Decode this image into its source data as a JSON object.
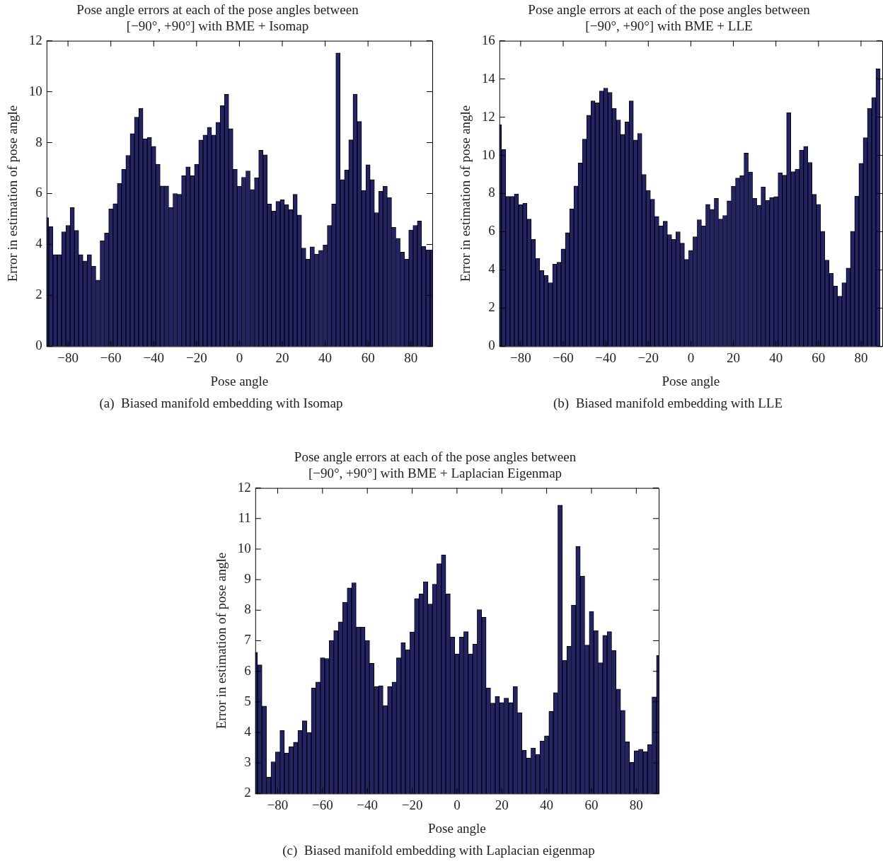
{
  "chart_data": [
    {
      "type": "bar",
      "title": "Pose angle errors at each of the pose angles between\n[−90°, +90°] with BME + Isomap",
      "xlabel": "Pose angle",
      "ylabel": "Error in estimation of pose angle",
      "annotations": [
        "(a)  Biased manifold embedding with Isomap"
      ],
      "color": "#232366",
      "x": [
        -90,
        -88,
        -86,
        -84,
        -82,
        -80,
        -78,
        -76,
        -74,
        -72,
        -70,
        -68,
        -66,
        -64,
        -62,
        -60,
        -58,
        -56,
        -54,
        -52,
        -50,
        -48,
        -46,
        -44,
        -42,
        -40,
        -38,
        -36,
        -34,
        -32,
        -30,
        -28,
        -26,
        -24,
        -22,
        -20,
        -18,
        -16,
        -14,
        -12,
        -10,
        -8,
        -6,
        -4,
        -2,
        0,
        2,
        4,
        6,
        8,
        10,
        12,
        14,
        16,
        18,
        20,
        22,
        24,
        26,
        28,
        30,
        32,
        34,
        36,
        38,
        40,
        42,
        44,
        46,
        48,
        50,
        52,
        54,
        56,
        58,
        60,
        62,
        64,
        66,
        68,
        70,
        72,
        74,
        76,
        78,
        80,
        82,
        84,
        86,
        88,
        90
      ],
      "values": [
        5.05,
        4.7,
        3.6,
        3.6,
        4.5,
        4.75,
        5.45,
        4.55,
        3.6,
        3.35,
        3.6,
        3.15,
        2.6,
        4.15,
        4.45,
        5.4,
        5.6,
        6.4,
        6.95,
        7.5,
        8.35,
        9.0,
        9.35,
        8.15,
        8.2,
        7.85,
        7.15,
        6.3,
        6.3,
        5.45,
        6.0,
        5.97,
        6.7,
        7.05,
        6.7,
        7.15,
        8.1,
        8.3,
        8.6,
        8.3,
        8.8,
        9.45,
        9.9,
        8.55,
        6.95,
        6.29,
        6.64,
        6.89,
        6.16,
        6.62,
        7.7,
        7.52,
        5.59,
        5.31,
        5.69,
        5.76,
        5.57,
        5.37,
        5.97,
        5.16,
        3.86,
        3.43,
        3.91,
        3.62,
        3.77,
        3.98,
        4.75,
        5.59,
        11.52,
        6.55,
        6.93,
        8.11,
        9.9,
        8.83,
        6.12,
        7.13,
        6.55,
        5.25,
        6.09,
        6.29,
        5.84,
        4.67,
        4.24,
        3.7,
        3.43,
        4.57,
        4.75,
        4.92,
        3.92,
        3.79,
        3.79
      ],
      "xlim": [
        -90,
        90
      ],
      "xticks": [
        {
          "value": -80,
          "label": "−80"
        },
        {
          "value": -60,
          "label": "−60"
        },
        {
          "value": -40,
          "label": "−40"
        },
        {
          "value": -20,
          "label": "−20"
        },
        0,
        20,
        40,
        60,
        80
      ],
      "ylim": [
        0,
        12
      ],
      "yticks": [
        0,
        2,
        4,
        6,
        8,
        10,
        12
      ]
    },
    {
      "type": "bar",
      "title": "Pose angle errors at each of the pose angles between\n[−90°, +90°] with BME + LLE",
      "xlabel": "Pose angle",
      "ylabel": "Error in estimation of pose angle",
      "annotations": [
        "(b)  Biased manifold embedding with LLE"
      ],
      "color": "#232366",
      "x": [
        -90,
        -88,
        -86,
        -84,
        -82,
        -80,
        -78,
        -76,
        -74,
        -72,
        -70,
        -68,
        -66,
        -64,
        -62,
        -60,
        -58,
        -56,
        -54,
        -52,
        -50,
        -48,
        -46,
        -44,
        -42,
        -40,
        -38,
        -36,
        -34,
        -32,
        -30,
        -28,
        -26,
        -24,
        -22,
        -20,
        -18,
        -16,
        -14,
        -12,
        -10,
        -8,
        -6,
        -4,
        -2,
        0,
        2,
        4,
        6,
        8,
        10,
        12,
        14,
        16,
        18,
        20,
        22,
        24,
        26,
        28,
        30,
        32,
        34,
        36,
        38,
        40,
        42,
        44,
        46,
        48,
        50,
        52,
        54,
        56,
        58,
        60,
        62,
        64,
        66,
        68,
        70,
        72,
        74,
        76,
        78,
        80,
        82,
        84,
        86,
        88
      ],
      "values": [
        11.6,
        10.3,
        7.85,
        7.85,
        7.98,
        7.42,
        7.5,
        6.66,
        5.6,
        4.6,
        3.97,
        3.71,
        3.33,
        4.3,
        4.4,
        5.1,
        5.95,
        7.2,
        8.4,
        9.6,
        10.85,
        12.1,
        12.85,
        12.75,
        13.37,
        13.52,
        13.3,
        12.45,
        11.85,
        11.1,
        11.75,
        12.85,
        10.8,
        11.15,
        9.0,
        8.15,
        7.7,
        6.8,
        6.3,
        6.55,
        5.85,
        5.6,
        6.0,
        5.4,
        4.55,
        5.02,
        5.74,
        6.63,
        6.3,
        7.43,
        7.17,
        7.75,
        6.66,
        6.85,
        7.62,
        8.39,
        8.81,
        8.94,
        10.12,
        9.13,
        7.75,
        7.39,
        8.35,
        7.64,
        7.78,
        7.84,
        9.09,
        8.96,
        12.23,
        9.15,
        9.28,
        10.27,
        10.47,
        9.63,
        7.96,
        7.43,
        6.02,
        4.51,
        3.82,
        3.16,
        2.62,
        3.33,
        4.1,
        6.02,
        7.87,
        9.58,
        10.92,
        12.46,
        13.03,
        14.53
      ],
      "xlim": [
        -90,
        90
      ],
      "xticks": [
        {
          "value": -80,
          "label": "−80"
        },
        {
          "value": -60,
          "label": "−60"
        },
        {
          "value": -40,
          "label": "−40"
        },
        {
          "value": -20,
          "label": "−20"
        },
        0,
        20,
        40,
        60,
        80
      ],
      "ylim": [
        0,
        16
      ],
      "yticks": [
        0,
        2,
        4,
        6,
        8,
        10,
        12,
        14,
        16
      ]
    },
    {
      "type": "bar",
      "title": "Pose angle errors at each of the pose angles between\n[−90°, +90°] with BME + Laplacian Eigenmap",
      "xlabel": "Pose angle",
      "ylabel": "Error in estimation of pose angle",
      "annotations": [
        "(c)  Biased manifold embedding with Laplacian eigenmap"
      ],
      "color": "#232366",
      "x": [
        -90,
        -88,
        -86,
        -84,
        -82,
        -80,
        -78,
        -76,
        -74,
        -72,
        -70,
        -68,
        -66,
        -64,
        -62,
        -60,
        -58,
        -56,
        -54,
        -52,
        -50,
        -48,
        -46,
        -44,
        -42,
        -40,
        -38,
        -36,
        -34,
        -32,
        -30,
        -28,
        -26,
        -24,
        -22,
        -20,
        -18,
        -16,
        -14,
        -12,
        -10,
        -8,
        -6,
        -4,
        -2,
        0,
        2,
        4,
        6,
        8,
        10,
        12,
        14,
        16,
        18,
        20,
        22,
        24,
        26,
        28,
        30,
        32,
        34,
        36,
        38,
        40,
        42,
        44,
        46,
        48,
        50,
        52,
        54,
        56,
        58,
        60,
        62,
        64,
        66,
        68,
        70,
        72,
        74,
        76,
        78,
        80,
        82,
        84,
        86,
        88,
        90
      ],
      "values": [
        6.62,
        6.21,
        4.86,
        2.54,
        3.04,
        3.36,
        4.06,
        3.33,
        3.53,
        3.68,
        4.06,
        4.38,
        4.0,
        5.45,
        5.65,
        6.44,
        6.42,
        7.01,
        7.33,
        7.62,
        8.26,
        8.73,
        8.9,
        7.45,
        7.45,
        7.01,
        6.26,
        5.5,
        5.53,
        4.88,
        5.5,
        5.65,
        6.44,
        6.94,
        6.7,
        7.29,
        8.38,
        8.53,
        8.93,
        8.2,
        8.85,
        9.52,
        9.81,
        8.53,
        7.12,
        6.57,
        7.12,
        7.3,
        6.57,
        6.89,
        8.02,
        7.77,
        5.45,
        4.96,
        5.18,
        4.98,
        5.12,
        4.98,
        5.5,
        4.65,
        3.42,
        3.16,
        3.49,
        3.28,
        3.72,
        3.89,
        4.69,
        5.3,
        11.44,
        6.36,
        6.82,
        8.16,
        10.09,
        9.12,
        6.86,
        7.96,
        7.33,
        6.28,
        7.18,
        7.3,
        6.68,
        5.42,
        4.72,
        3.69,
        3.02,
        3.4,
        3.45,
        3.37,
        3.6,
        5.16,
        6.52
      ],
      "xlim": [
        -90,
        90
      ],
      "xticks": [
        {
          "value": -80,
          "label": "−80"
        },
        {
          "value": -60,
          "label": "−60"
        },
        {
          "value": -40,
          "label": "−40"
        },
        {
          "value": -20,
          "label": "−20"
        },
        0,
        20,
        40,
        60,
        80
      ],
      "ylim": [
        2,
        12
      ],
      "yticks": [
        2,
        3,
        4,
        5,
        6,
        7,
        8,
        9,
        10,
        11,
        12
      ]
    }
  ]
}
